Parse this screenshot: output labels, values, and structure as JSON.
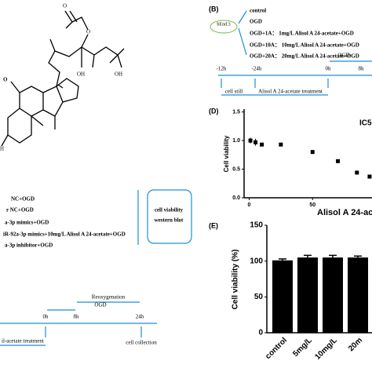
{
  "structure": {
    "atoms": [
      "O",
      "O",
      "OH",
      "OH",
      "O",
      "H"
    ]
  },
  "panel_b": {
    "label": "(B)",
    "cell": "bEnd.3",
    "groups": [
      "control",
      "OGD",
      "OGD+1A：  1mg/L Alisol A 24-acetate+OGD",
      "OGD+10A：  10mg/L Alisol A 24-acetate+OGD",
      "OGD+20A：  20mg/L Alisol A 24-acetate+OGD"
    ],
    "timeline": {
      "times": [
        "-12h",
        "-24h",
        "0h",
        "8h"
      ],
      "ogd": "OGD",
      "phases": [
        "cell still",
        "Alisol A 24-acetate treatment"
      ]
    }
  },
  "panel_c": {
    "groups": [
      "NC+OGD",
      "r NC+OGD",
      "a-3p mimics+OGD",
      "iR-92a-3p mimics+10mg/L Alisol A 24-acetate+OGD",
      "a-3p inhibitor+OGD"
    ],
    "assays": [
      "cell viability",
      "western blot"
    ],
    "timeline": {
      "times": [
        "0h",
        "8h",
        "24h"
      ],
      "phases": [
        "OGD",
        "Reoxygenation"
      ],
      "treatment": "il-acetate treatment",
      "end": "cell collection"
    }
  },
  "chart_data": [
    {
      "type": "scatter",
      "label": "(D)",
      "annotation": "IC5",
      "x_label": "Alisol A 24-acet",
      "y_label": "Cell viability",
      "x": [
        1,
        5,
        10,
        25,
        50,
        70,
        85,
        95
      ],
      "values": [
        1.0,
        0.97,
        0.93,
        0.93,
        0.8,
        0.64,
        0.44,
        0.37
      ],
      "errors": [
        0.05,
        0.06,
        0.03,
        0.03,
        0.02,
        0.02,
        0.02,
        0.02
      ],
      "color": "#000000",
      "xlim": [
        -4,
        100
      ],
      "xticks": [
        0,
        50
      ],
      "ylim": [
        0,
        1.55
      ],
      "yticks": [
        {
          "value": 0,
          "label": "0.0"
        },
        {
          "value": 0.5,
          "label": "0.5"
        },
        {
          "value": 1,
          "label": "1.0"
        },
        {
          "value": 1.5,
          "label": "1.5"
        }
      ]
    },
    {
      "type": "bar",
      "label": "(E)",
      "y_label": "Cell viability (%)",
      "categories": [
        "control",
        "5mg/L",
        "10mg/L",
        "20m"
      ],
      "values": [
        101,
        105,
        105,
        105
      ],
      "errors": [
        2,
        3,
        3,
        2
      ],
      "color": "#000000",
      "ylim": [
        0,
        150
      ],
      "yticks": [
        0,
        50,
        100,
        150
      ]
    }
  ]
}
